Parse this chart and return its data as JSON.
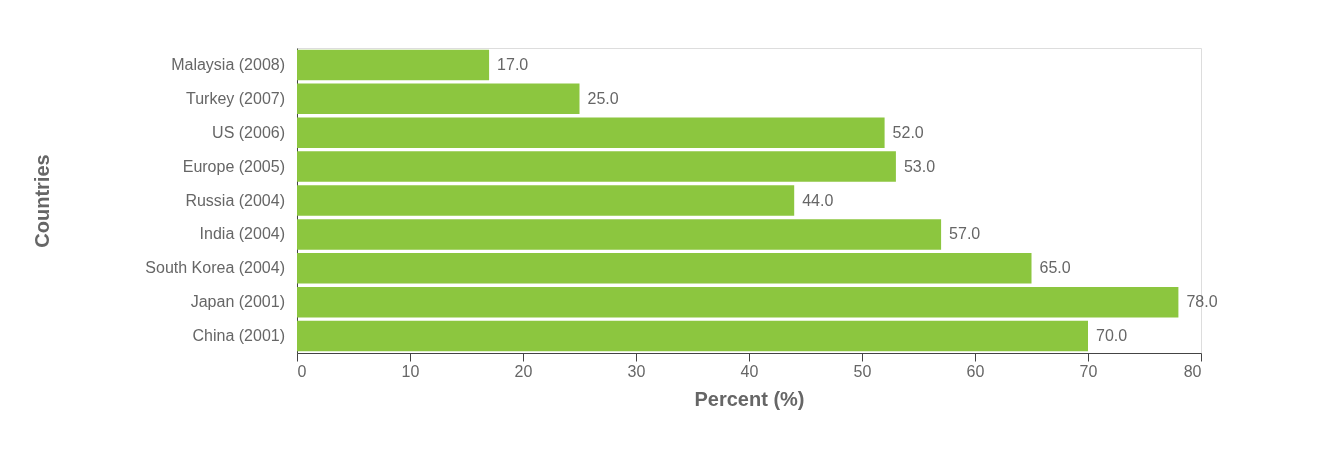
{
  "chart_data": {
    "type": "bar",
    "orientation": "horizontal",
    "xlabel": "Percent (%)",
    "ylabel": "Countries",
    "categories": [
      "Malaysia (2008)",
      "Turkey (2007)",
      "US (2006)",
      "Europe (2005)",
      "Russia (2004)",
      "India (2004)",
      "South Korea (2004)",
      "Japan (2001)",
      "China (2001)"
    ],
    "values": [
      17,
      25,
      52,
      53,
      44,
      57,
      65,
      78,
      70
    ],
    "value_labels": [
      "17.0",
      "25.0",
      "52.0",
      "53.0",
      "44.0",
      "57.0",
      "65.0",
      "78.0",
      "70.0"
    ],
    "color": "#8cc63f",
    "xlim": [
      0,
      80
    ],
    "xticks": [
      0,
      10,
      20,
      30,
      40,
      50,
      60,
      70,
      80
    ],
    "grid": false
  }
}
